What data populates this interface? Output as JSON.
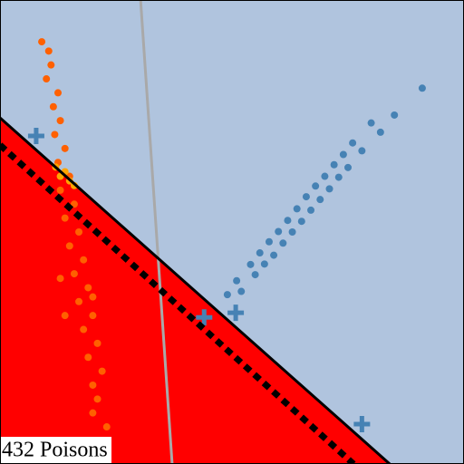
{
  "chart_data": {
    "type": "scatter",
    "annotation": "432 Poisons",
    "xlim": [
      0,
      100
    ],
    "ylim": [
      0,
      100
    ],
    "background": "#b0c4de",
    "region_color": "#ff0000",
    "boundary": {
      "color": "#000000",
      "x": [
        0,
        84
      ],
      "y": [
        74.6,
        0
      ]
    },
    "shifted_boundary": {
      "color": "#000000",
      "dashed": true,
      "x": [
        0,
        76.2
      ],
      "y": [
        68.75,
        0
      ]
    },
    "reference_line": {
      "color": "#a9a9a9",
      "x": [
        30.3,
        37.1
      ],
      "y": [
        100,
        0
      ]
    },
    "series": [
      {
        "color": "#4682b4",
        "marker": "circle",
        "x": [
          49,
          51,
          52,
          54,
          55,
          56,
          57,
          58,
          59,
          60,
          61,
          62,
          63,
          64,
          65,
          66,
          67,
          68,
          69,
          70,
          71,
          72,
          73,
          74,
          75,
          76,
          78,
          80,
          82,
          85,
          91
        ],
        "y": [
          36.5,
          39.5,
          37.2,
          43.0,
          40.8,
          45.5,
          43.1,
          47.9,
          45.0,
          50.1,
          47.6,
          52.5,
          50.0,
          55.0,
          52.3,
          57.6,
          54.7,
          59.9,
          57.0,
          62.0,
          59.3,
          64.5,
          61.8,
          66.7,
          63.9,
          69.2,
          67.5,
          73.5,
          71.5,
          75.2,
          81.0
        ]
      },
      {
        "color": "#ff6000",
        "marker": "circle",
        "x": [
          9,
          10.5,
          11,
          10,
          12.5,
          11.5,
          13,
          11.8,
          14,
          12.5,
          15,
          13,
          16,
          14,
          17,
          15,
          18,
          16,
          19,
          17,
          20,
          18,
          21,
          19,
          22,
          20,
          21,
          20,
          23,
          13,
          14,
          20
        ],
        "y": [
          91,
          89,
          86,
          83,
          80,
          77,
          74,
          71,
          68,
          65,
          62,
          59,
          56,
          53,
          50,
          47,
          44,
          41,
          38,
          35,
          32,
          29,
          26,
          23,
          20,
          17,
          14,
          11,
          8,
          40,
          32,
          36
        ]
      },
      {
        "color": "#ffa500",
        "marker": "circle",
        "x": [
          12,
          14,
          15,
          13,
          16
        ],
        "y": [
          64,
          63,
          61,
          62,
          60
        ]
      },
      {
        "color": "#4682b4",
        "marker": "plus",
        "x": [
          7.8,
          44,
          50.8,
          78
        ],
        "y": [
          70.7,
          31.6,
          32.6,
          8.6
        ]
      }
    ]
  }
}
